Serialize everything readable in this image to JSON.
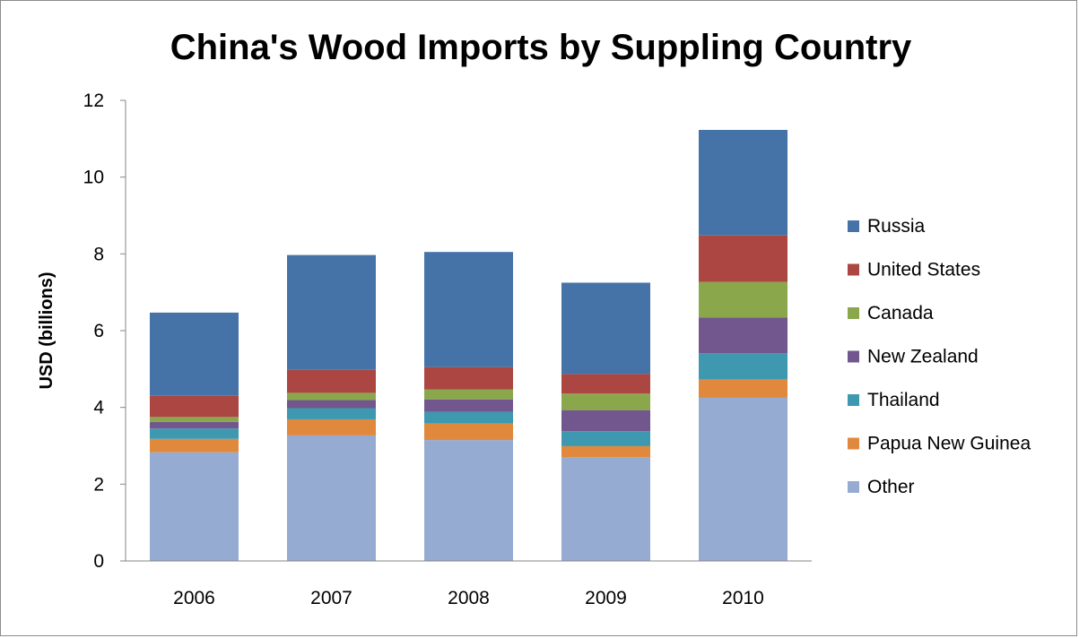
{
  "chart_data": {
    "type": "bar",
    "stacked": true,
    "title": "China's Wood Imports by Suppling Country",
    "xlabel": "",
    "ylabel": "USD (billions)",
    "ylim": [
      0,
      12
    ],
    "yticks": [
      0,
      2,
      4,
      6,
      8,
      10,
      12
    ],
    "categories": [
      "2006",
      "2007",
      "2008",
      "2009",
      "2010"
    ],
    "legend_position": "right",
    "grid": false,
    "series": [
      {
        "name": "Other",
        "color": "#95abd2",
        "values": [
          2.83,
          3.27,
          3.15,
          2.7,
          4.25
        ]
      },
      {
        "name": "Papua New Guinea",
        "color": "#e0893d",
        "values": [
          0.35,
          0.42,
          0.43,
          0.29,
          0.48
        ]
      },
      {
        "name": "Thailand",
        "color": "#3e98b0",
        "values": [
          0.27,
          0.29,
          0.3,
          0.39,
          0.68
        ]
      },
      {
        "name": "New Zealand",
        "color": "#72578f",
        "values": [
          0.17,
          0.21,
          0.33,
          0.55,
          0.93
        ]
      },
      {
        "name": "Canada",
        "color": "#8aa84b",
        "values": [
          0.13,
          0.19,
          0.26,
          0.43,
          0.93
        ]
      },
      {
        "name": "United States",
        "color": "#ab4643",
        "values": [
          0.55,
          0.6,
          0.58,
          0.51,
          1.21
        ]
      },
      {
        "name": "Russia",
        "color": "#4573a7",
        "values": [
          2.17,
          2.99,
          3.0,
          2.38,
          2.75
        ]
      }
    ],
    "legend_order": [
      "Russia",
      "United States",
      "Canada",
      "New Zealand",
      "Thailand",
      "Papua New Guinea",
      "Other"
    ]
  }
}
